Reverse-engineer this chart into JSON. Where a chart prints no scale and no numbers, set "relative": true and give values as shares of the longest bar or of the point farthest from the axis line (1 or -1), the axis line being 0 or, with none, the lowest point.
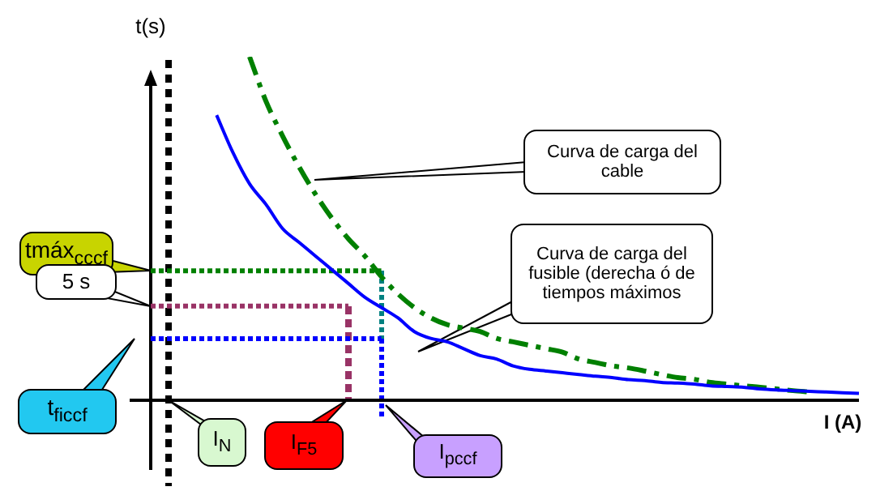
{
  "chart_data": {
    "type": "line",
    "relative": true,
    "legend": false,
    "xlabel": "I (A)",
    "ylabel": "t(s)",
    "categories": [
      null,
      null,
      null,
      null,
      null,
      null,
      null,
      null,
      null,
      null,
      null,
      null,
      null,
      null,
      null,
      null,
      null,
      null,
      null,
      null,
      null,
      null,
      null,
      null,
      null,
      null,
      null,
      null,
      null,
      null,
      null,
      null,
      null,
      null,
      null,
      null,
      null,
      null,
      null,
      null,
      null,
      null,
      null,
      null
    ],
    "series": [
      {
        "color": "#0000ff",
        "line_style": "solid",
        "values": [
          null,
          null,
          null,
          null,
          0.83,
          0.72,
          0.63,
          0.57,
          0.5,
          0.46,
          0.42,
          0.38,
          0.34,
          0.3,
          0.27,
          0.24,
          0.2,
          0.18,
          0.17,
          0.15,
          0.13,
          0.12,
          0.1,
          0.09,
          0.085,
          0.08,
          0.075,
          0.07,
          0.066,
          0.06,
          0.057,
          0.052,
          0.05,
          0.047,
          0.042,
          0.04,
          0.038,
          0.033,
          0.03,
          0.028,
          0.026,
          0.024,
          0.022,
          0.02
        ]
      },
      {
        "color": "#008000",
        "line_style": "dashed",
        "values": [
          null,
          null,
          null,
          null,
          null,
          null,
          1.0,
          0.87,
          0.77,
          0.68,
          0.6,
          0.53,
          0.47,
          0.42,
          0.36,
          0.31,
          0.27,
          0.24,
          0.22,
          0.21,
          0.2,
          0.18,
          0.17,
          0.16,
          0.15,
          0.14,
          0.12,
          0.11,
          0.1,
          0.094,
          0.085,
          0.075,
          0.066,
          0.061,
          0.052,
          0.047,
          0.042,
          0.038,
          0.033,
          0.028,
          0.024,
          null,
          null,
          null
        ]
      },
      {
        "color": "#008000",
        "line_style": "dotted",
        "values": [
          0.377,
          0.377,
          0.377,
          0.377,
          0.377,
          0.377,
          0.377,
          0.377,
          0.377,
          0.377,
          0.377,
          0.377,
          0.377,
          0.377,
          0.377,
          null,
          null,
          null,
          null,
          null,
          null,
          null,
          null,
          null,
          null,
          null,
          null,
          null,
          null,
          null,
          null,
          null,
          null,
          null,
          null,
          null,
          null,
          null,
          null,
          null,
          null,
          null,
          null,
          null
        ]
      },
      {
        "color": "#993366",
        "line_style": "dotted",
        "values": [
          0.274,
          0.274,
          0.274,
          0.274,
          0.274,
          0.274,
          0.274,
          0.274,
          0.274,
          0.274,
          0.274,
          0.274,
          0.274,
          null,
          null,
          null,
          null,
          null,
          null,
          null,
          null,
          null,
          null,
          null,
          null,
          null,
          null,
          null,
          null,
          null,
          null,
          null,
          null,
          null,
          null,
          null,
          null,
          null,
          null,
          null,
          null,
          null,
          null,
          null
        ]
      },
      {
        "color": "#0000ff",
        "line_style": "dotted",
        "values": [
          0.179,
          0.179,
          0.179,
          0.179,
          0.179,
          0.179,
          0.179,
          0.179,
          0.179,
          0.179,
          0.179,
          0.179,
          0.179,
          0.179,
          0.179,
          null,
          null,
          null,
          null,
          null,
          null,
          null,
          null,
          null,
          null,
          null,
          null,
          null,
          null,
          null,
          null,
          null,
          null,
          null,
          null,
          null,
          null,
          null,
          null,
          null,
          null,
          null,
          null,
          null
        ]
      }
    ],
    "annotations": [
      "Curva de carga del cable",
      "Curva de carga del fusible (derecha ó de tiempos máximos",
      "tmáx$_{cccf}$",
      "5 s",
      "t$_{ficcf}$",
      "I$_{N}$",
      "I$_{F5}$",
      "I$_{pccf}$"
    ]
  }
}
